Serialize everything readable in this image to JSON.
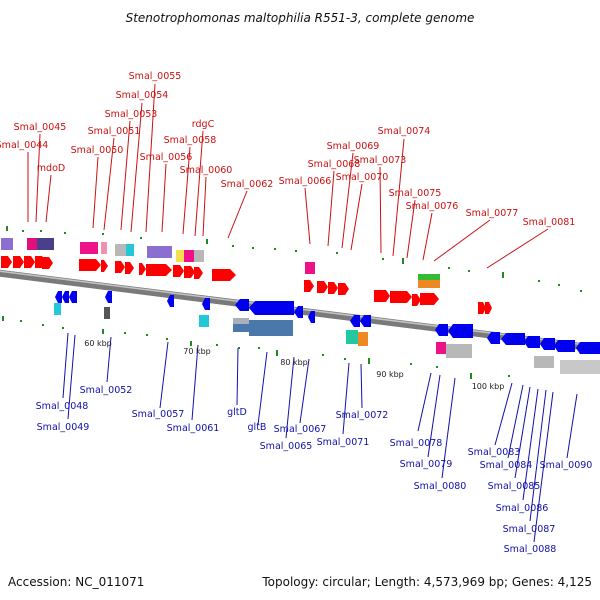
{
  "title": "Stenotrophomonas maltophilia R551-3, complete genome",
  "footer": {
    "accession": "Accession: NC_011071",
    "topology": "Topology: circular; Length: 4,573,969 bp; Genes: 4,125"
  },
  "colors": {
    "forward_label": "#cc1111",
    "reverse_label": "#1111aa",
    "forward_gene": "#ff0000",
    "reverse_gene": "#0000ee",
    "backbone": "#8a8a8a",
    "tick": "#228822"
  },
  "scale_marks": [
    {
      "label": "60 kbp",
      "kbp": 60
    },
    {
      "label": "70 kbp",
      "kbp": 70
    },
    {
      "label": "80 kbp",
      "kbp": 80
    },
    {
      "label": "90 kbp",
      "kbp": 90
    },
    {
      "label": "100 kbp",
      "kbp": 100
    }
  ],
  "forward_labels": [
    "Smal_0044",
    "Smal_0045",
    "mdoD",
    "Smal_0050",
    "Smal_0051",
    "Smal_0053",
    "Smal_0054",
    "Smal_0055",
    "Smal_0056",
    "Smal_0058",
    "rdgC",
    "Smal_0060",
    "Smal_0062",
    "Smal_0066",
    "Smal_0068",
    "Smal_0069",
    "Smal_0070",
    "Smal_0073",
    "Smal_0074",
    "Smal_0075",
    "Smal_0076",
    "Smal_0077",
    "Smal_0081"
  ],
  "reverse_labels": [
    "Smal_0048",
    "Smal_0049",
    "Smal_0052",
    "Smal_0057",
    "Smal_0061",
    "gltD",
    "gltB",
    "Smal_0065",
    "Smal_0067",
    "Smal_0071",
    "Smal_0072",
    "Smal_0078",
    "Smal_0079",
    "Smal_0080",
    "Smal_0083",
    "Smal_0084",
    "Smal_0085",
    "Smal_0086",
    "Smal_0087",
    "Smal_0088",
    "Smal_0090"
  ]
}
